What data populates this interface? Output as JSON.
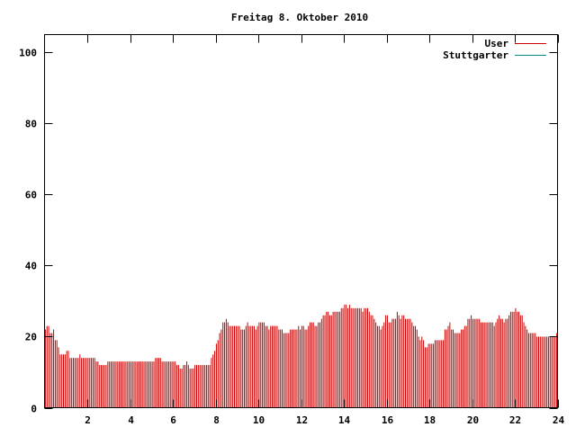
{
  "chart_data": {
    "type": "bar",
    "title": "Freitag 8. Oktober 2010",
    "xlabel": "",
    "ylabel": "",
    "xlim": [
      0,
      24
    ],
    "ylim": [
      0,
      105
    ],
    "x_ticks": [
      2,
      4,
      6,
      8,
      10,
      12,
      14,
      16,
      18,
      20,
      22,
      24
    ],
    "y_ticks": [
      0,
      20,
      40,
      60,
      80,
      100
    ],
    "x_tick_labels": [
      "2",
      "4",
      "6",
      "8",
      "10",
      "12",
      "14",
      "16",
      "18",
      "20",
      "22",
      "24"
    ],
    "y_tick_labels": [
      "0",
      "20",
      "40",
      "60",
      "80",
      "100"
    ],
    "grid": false,
    "legend_position": "top-right",
    "series": [
      {
        "name": "User",
        "color": "#cc0000",
        "values": [
          22,
          23,
          23,
          21,
          21,
          22,
          19,
          19,
          17,
          15,
          15,
          15,
          15,
          16,
          16,
          14,
          14,
          14,
          14,
          14,
          14,
          15,
          14,
          14,
          14,
          14,
          14,
          14,
          14,
          14,
          14,
          13,
          13,
          12,
          12,
          12,
          12,
          12,
          13,
          13,
          13,
          13,
          13,
          13,
          13,
          13,
          13,
          13,
          13,
          13,
          13,
          13,
          13,
          13,
          13,
          13,
          13,
          13,
          13,
          13,
          13,
          13,
          13,
          13,
          13,
          13,
          13,
          14,
          14,
          14,
          14,
          13,
          13,
          13,
          13,
          13,
          13,
          13,
          13,
          13,
          12,
          12,
          11,
          11,
          12,
          12,
          13,
          12,
          11,
          11,
          11,
          12,
          12,
          12,
          12,
          12,
          12,
          12,
          12,
          12,
          12,
          14,
          15,
          16,
          18,
          19,
          21,
          22,
          24,
          24,
          25,
          24,
          23,
          23,
          23,
          23,
          23,
          23,
          23,
          22,
          22,
          22,
          23,
          24,
          23,
          23,
          23,
          23,
          22,
          23,
          24,
          24,
          24,
          24,
          23,
          23,
          22,
          23,
          23,
          23,
          23,
          23,
          22,
          22,
          22,
          21,
          21,
          21,
          21,
          22,
          22,
          22,
          22,
          22,
          23,
          22,
          23,
          23,
          22,
          22,
          23,
          24,
          24,
          24,
          23,
          23,
          24,
          24,
          25,
          26,
          26,
          27,
          27,
          26,
          26,
          27,
          27,
          27,
          27,
          27,
          28,
          28,
          29,
          29,
          28,
          29,
          28,
          28,
          28,
          28,
          28,
          28,
          28,
          27,
          28,
          28,
          28,
          27,
          26,
          26,
          25,
          24,
          23,
          23,
          22,
          23,
          24,
          26,
          26,
          24,
          24,
          25,
          25,
          25,
          27,
          26,
          25,
          26,
          26,
          25,
          25,
          25,
          25,
          24,
          23,
          23,
          22,
          20,
          19,
          20,
          19,
          17,
          17,
          18,
          18,
          18,
          18,
          19,
          19,
          19,
          19,
          19,
          19,
          22,
          22,
          23,
          24,
          22,
          22,
          21,
          21,
          21,
          21,
          22,
          22,
          23,
          23,
          25,
          25,
          26,
          25,
          25,
          25,
          25,
          25,
          24,
          24,
          24,
          24,
          24,
          24,
          24,
          24,
          23,
          24,
          25,
          26,
          25,
          25,
          24,
          25,
          25,
          26,
          27,
          27,
          27,
          28,
          27,
          27,
          26,
          26,
          24,
          23,
          22,
          21,
          21,
          21,
          21,
          21,
          20,
          20,
          20,
          20,
          20,
          20,
          20,
          20,
          20,
          20,
          20,
          20,
          21
        ]
      },
      {
        "name": "Stuttgarter",
        "color": "#008b8b",
        "values": []
      }
    ]
  }
}
